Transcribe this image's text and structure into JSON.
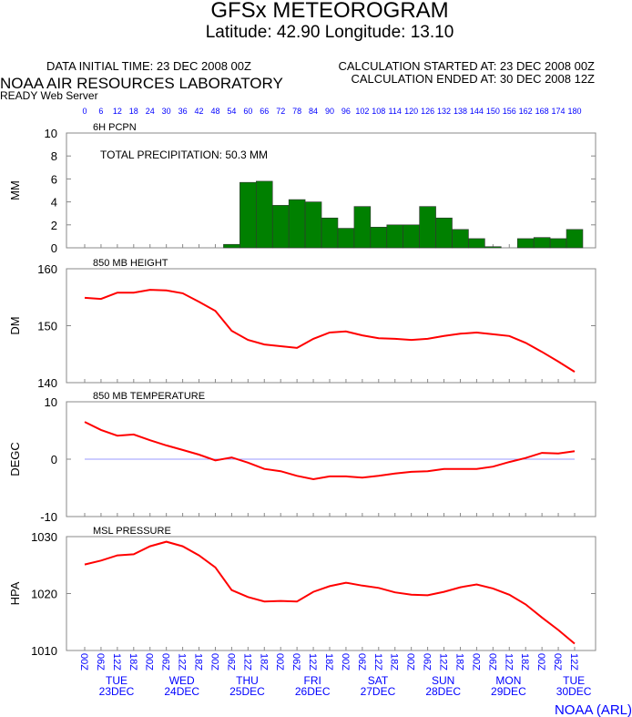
{
  "header": {
    "title": "GFSx METEOROGRAM",
    "subtitle": "Latitude: 42.90 Longitude:  13.10",
    "data_initial_time": "DATA INITIAL TIME: 23 DEC 2008 00Z",
    "calc_started": "CALCULATION STARTED AT: 23 DEC 2008 00Z",
    "calc_ended": "CALCULATION ENDED AT: 30 DEC 2008 12Z",
    "org": "NOAA AIR RESOURCES LABORATORY",
    "server": "READY Web Server",
    "credit": "NOAA (ARL)"
  },
  "colors": {
    "bar": "#008000",
    "line": "#ff0000",
    "axis_labels": "#0000ff",
    "zero_line": "#9999ff"
  },
  "hours": [
    0,
    6,
    12,
    18,
    24,
    30,
    36,
    42,
    48,
    54,
    60,
    66,
    72,
    78,
    84,
    90,
    96,
    102,
    108,
    114,
    120,
    126,
    132,
    138,
    144,
    150,
    156,
    162,
    168,
    174,
    180
  ],
  "time_ticks": [
    "00Z",
    "06Z",
    "12Z",
    "18Z",
    "00Z",
    "06Z",
    "12Z",
    "18Z",
    "00Z",
    "06Z",
    "12Z",
    "18Z",
    "00Z",
    "06Z",
    "12Z",
    "18Z",
    "00Z",
    "06Z",
    "12Z",
    "18Z",
    "00Z",
    "06Z",
    "12Z",
    "18Z",
    "00Z",
    "06Z",
    "12Z",
    "18Z",
    "00Z",
    "06Z",
    "12Z"
  ],
  "days": [
    {
      "dow": "TUE",
      "date": "23DEC"
    },
    {
      "dow": "WED",
      "date": "24DEC"
    },
    {
      "dow": "THU",
      "date": "25DEC"
    },
    {
      "dow": "FRI",
      "date": "26DEC"
    },
    {
      "dow": "SAT",
      "date": "27DEC"
    },
    {
      "dow": "SUN",
      "date": "28DEC"
    },
    {
      "dow": "MON",
      "date": "29DEC"
    },
    {
      "dow": "TUE",
      "date": "30DEC"
    }
  ],
  "chart_data": [
    {
      "type": "bar",
      "title": "6H PCPN",
      "annotation": "TOTAL PRECIPITATION:  50.3 MM",
      "ylabel": "MM",
      "ylim": [
        0,
        10
      ],
      "yticks": [
        0,
        2,
        4,
        6,
        8,
        10
      ],
      "values": [
        0,
        0,
        0,
        0,
        0,
        0,
        0,
        0,
        0,
        0.3,
        5.7,
        5.8,
        3.7,
        4.2,
        4.0,
        2.6,
        1.7,
        3.6,
        1.8,
        2.0,
        2.0,
        3.6,
        2.6,
        1.6,
        0.8,
        0.1,
        0,
        0.8,
        0.9,
        0.8,
        1.6
      ]
    },
    {
      "type": "line",
      "title": "850 MB  HEIGHT",
      "ylabel": "DM",
      "ylim": [
        140,
        160
      ],
      "yticks": [
        140,
        150,
        160
      ],
      "values": [
        154.9,
        154.7,
        155.8,
        155.8,
        156.3,
        156.2,
        155.7,
        154.2,
        152.6,
        149.1,
        147.5,
        146.7,
        146.4,
        146.1,
        147.7,
        148.8,
        149.0,
        148.3,
        147.8,
        147.7,
        147.5,
        147.7,
        148.2,
        148.6,
        148.8,
        148.5,
        148.2,
        147.0,
        145.4,
        143.7,
        141.9
      ]
    },
    {
      "type": "line",
      "title": "850 MB  TEMPERATURE",
      "ylabel": "DEGC",
      "ylim": [
        -10,
        10
      ],
      "yticks": [
        -10,
        0,
        10
      ],
      "zero_line": true,
      "values": [
        6.5,
        5.1,
        4.1,
        4.3,
        3.3,
        2.4,
        1.6,
        0.8,
        -0.2,
        0.3,
        -0.6,
        -1.7,
        -2.1,
        -2.9,
        -3.5,
        -3.0,
        -3.0,
        -3.2,
        -2.9,
        -2.5,
        -2.2,
        -2.1,
        -1.7,
        -1.7,
        -1.7,
        -1.3,
        -0.5,
        0.2,
        1.1,
        1.0,
        1.4
      ]
    },
    {
      "type": "line",
      "title": "MSL PRESSURE",
      "ylabel": "HPA",
      "ylim": [
        1010,
        1030
      ],
      "yticks": [
        1010,
        1020,
        1030
      ],
      "values": [
        1025.1,
        1025.8,
        1026.7,
        1026.9,
        1028.3,
        1029.1,
        1028.3,
        1026.7,
        1024.6,
        1020.6,
        1019.4,
        1018.6,
        1018.7,
        1018.6,
        1020.3,
        1021.3,
        1021.9,
        1021.4,
        1021.0,
        1020.2,
        1019.8,
        1019.7,
        1020.3,
        1021.1,
        1021.6,
        1020.9,
        1019.8,
        1018.1,
        1015.8,
        1013.6,
        1011.2
      ]
    }
  ]
}
